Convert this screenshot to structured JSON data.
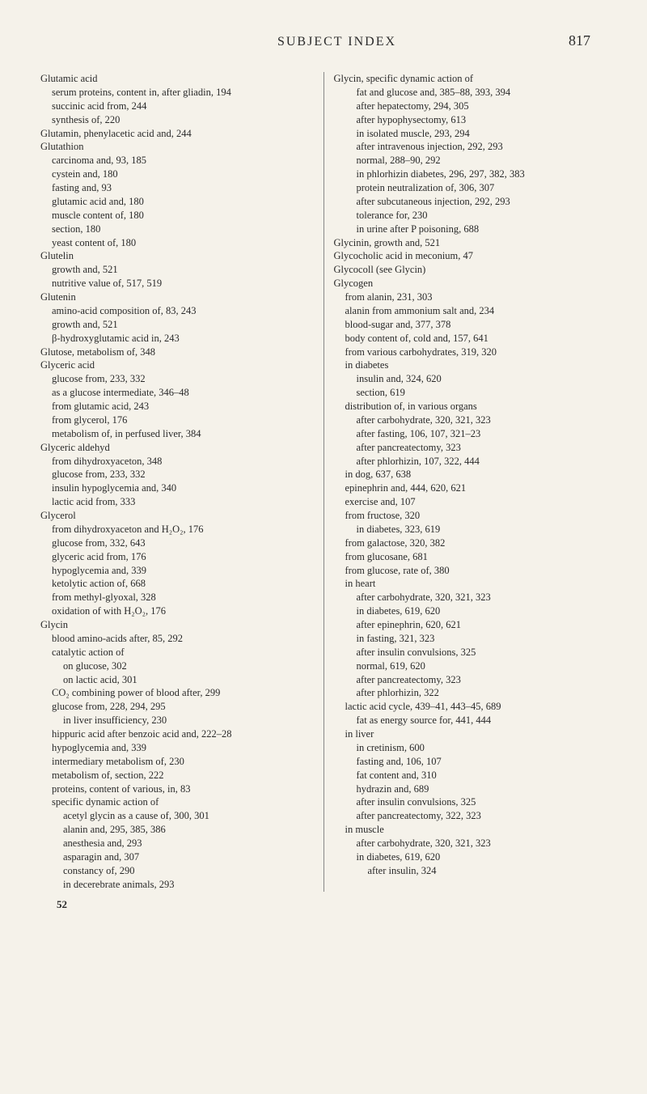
{
  "header": {
    "title": "SUBJECT INDEX",
    "pageNumber": "817"
  },
  "footer": "52",
  "leftColumn": [
    {
      "t": "Glutamic acid",
      "c": "l0"
    },
    {
      "t": "serum proteins, content in, after gliadin, 194",
      "c": "hang1"
    },
    {
      "t": "succinic acid from, 244",
      "c": "l1"
    },
    {
      "t": "synthesis of, 220",
      "c": "l1"
    },
    {
      "t": "Glutamin, phenylacetic acid and, 244",
      "c": "l0"
    },
    {
      "t": "Glutathion",
      "c": "l0"
    },
    {
      "t": "carcinoma and, 93, 185",
      "c": "l1"
    },
    {
      "t": "cystein and, 180",
      "c": "l1"
    },
    {
      "t": "fasting and, 93",
      "c": "l1"
    },
    {
      "t": "glutamic acid and, 180",
      "c": "l1"
    },
    {
      "t": "muscle content of, 180",
      "c": "l1"
    },
    {
      "t": "section, 180",
      "c": "l1"
    },
    {
      "t": "yeast content of, 180",
      "c": "l1"
    },
    {
      "t": "Glutelin",
      "c": "l0"
    },
    {
      "t": "growth and, 521",
      "c": "l1"
    },
    {
      "t": "nutritive value of, 517, 519",
      "c": "l1"
    },
    {
      "t": "Glutenin",
      "c": "l0"
    },
    {
      "t": "amino-acid composition of, 83, 243",
      "c": "l1"
    },
    {
      "t": "growth and, 521",
      "c": "l1"
    },
    {
      "t": "β-hydroxyglutamic acid in, 243",
      "c": "l1"
    },
    {
      "t": "Glutose, metabolism of, 348",
      "c": "l0"
    },
    {
      "t": "Glyceric acid",
      "c": "l0"
    },
    {
      "t": "glucose from, 233, 332",
      "c": "l1"
    },
    {
      "t": "as a glucose intermediate, 346–48",
      "c": "l1"
    },
    {
      "t": "from glutamic acid, 243",
      "c": "l1"
    },
    {
      "t": "from glycerol, 176",
      "c": "l1"
    },
    {
      "t": "metabolism of, in perfused liver, 384",
      "c": "l1"
    },
    {
      "t": "Glyceric aldehyd",
      "c": "l0"
    },
    {
      "t": "from dihydroxyaceton, 348",
      "c": "l1"
    },
    {
      "t": "glucose from, 233, 332",
      "c": "l1"
    },
    {
      "t": "insulin hypoglycemia and, 340",
      "c": "l1"
    },
    {
      "t": "lactic acid from, 333",
      "c": "l1"
    },
    {
      "t": "Glycerol",
      "c": "l0"
    },
    {
      "t": "from dihydroxyaceton and H₂O₂, 176",
      "c": "l1"
    },
    {
      "t": "glucose from, 332, 643",
      "c": "l1"
    },
    {
      "t": "glyceric acid from, 176",
      "c": "l1"
    },
    {
      "t": "hypoglycemia and, 339",
      "c": "l1"
    },
    {
      "t": "ketolytic action of, 668",
      "c": "l1"
    },
    {
      "t": "from methyl-glyoxal, 328",
      "c": "l1"
    },
    {
      "t": "oxidation of with H₂O₂, 176",
      "c": "l1"
    },
    {
      "t": "Glycin",
      "c": "l0"
    },
    {
      "t": "blood amino-acids after, 85, 292",
      "c": "l1"
    },
    {
      "t": "catalytic action of",
      "c": "l1"
    },
    {
      "t": "on glucose, 302",
      "c": "l2"
    },
    {
      "t": "on lactic acid, 301",
      "c": "l2"
    },
    {
      "t": "CO₂ combining power of blood after, 299",
      "c": "l1"
    },
    {
      "t": "glucose from, 228, 294, 295",
      "c": "l1"
    },
    {
      "t": "in liver insufficiency, 230",
      "c": "l2"
    },
    {
      "t": "hippuric acid after benzoic acid and, 222–28",
      "c": "hang1"
    },
    {
      "t": "hypoglycemia and, 339",
      "c": "l1"
    },
    {
      "t": "intermediary metabolism of, 230",
      "c": "l1"
    },
    {
      "t": "metabolism of, section, 222",
      "c": "l1"
    },
    {
      "t": "proteins, content of various, in, 83",
      "c": "l1"
    },
    {
      "t": "specific dynamic action of",
      "c": "l1"
    },
    {
      "t": "acetyl glycin as a cause of, 300, 301",
      "c": "hang2"
    },
    {
      "t": "alanin and, 295, 385, 386",
      "c": "l2"
    },
    {
      "t": "anesthesia and, 293",
      "c": "l2"
    },
    {
      "t": "asparagin and, 307",
      "c": "l2"
    },
    {
      "t": "constancy of, 290",
      "c": "l2"
    },
    {
      "t": "in decerebrate animals, 293",
      "c": "l2"
    }
  ],
  "rightColumn": [
    {
      "t": "Glycin, specific dynamic action of",
      "c": "l0"
    },
    {
      "t": "fat and glucose and, 385–88, 393, 394",
      "c": "hang2"
    },
    {
      "t": "after hepatectomy, 294, 305",
      "c": "l2"
    },
    {
      "t": "after hypophysectomy, 613",
      "c": "l2"
    },
    {
      "t": "in isolated muscle, 293, 294",
      "c": "l2"
    },
    {
      "t": "after intravenous injection, 292, 293",
      "c": "hang2"
    },
    {
      "t": "normal, 288–90, 292",
      "c": "l2"
    },
    {
      "t": "in phlorhizin diabetes, 296, 297, 382, 383",
      "c": "hang2"
    },
    {
      "t": "protein neutralization of, 306, 307",
      "c": "l2"
    },
    {
      "t": "after subcutaneous injection, 292, 293",
      "c": "hang2"
    },
    {
      "t": "tolerance for, 230",
      "c": "l2"
    },
    {
      "t": "in urine after P poisoning, 688",
      "c": "l2"
    },
    {
      "t": "Glycinin, growth and, 521",
      "c": "l0"
    },
    {
      "t": "Glycocholic acid in meconium, 47",
      "c": "l0"
    },
    {
      "t": "Glycocoll (see Glycin)",
      "c": "l0"
    },
    {
      "t": "Glycogen",
      "c": "l0"
    },
    {
      "t": "from alanin, 231, 303",
      "c": "l1"
    },
    {
      "t": "alanin from ammonium salt and, 234",
      "c": "l1"
    },
    {
      "t": "blood-sugar and, 377, 378",
      "c": "l1"
    },
    {
      "t": "body content of, cold and, 157, 641",
      "c": "l1"
    },
    {
      "t": "from various carbohydrates, 319, 320",
      "c": "l1"
    },
    {
      "t": "in diabetes",
      "c": "l1"
    },
    {
      "t": "insulin and, 324, 620",
      "c": "l2"
    },
    {
      "t": "section, 619",
      "c": "l2"
    },
    {
      "t": "distribution of, in various organs",
      "c": "l1"
    },
    {
      "t": "after carbohydrate, 320, 321, 323",
      "c": "l2"
    },
    {
      "t": "after fasting, 106, 107, 321–23",
      "c": "l2"
    },
    {
      "t": "after pancreatectomy, 323",
      "c": "l2"
    },
    {
      "t": "after phlorhizin, 107, 322, 444",
      "c": "l2"
    },
    {
      "t": "in dog, 637, 638",
      "c": "l1"
    },
    {
      "t": "epinephrin and, 444, 620, 621",
      "c": "l1"
    },
    {
      "t": "exercise and, 107",
      "c": "l1"
    },
    {
      "t": "from fructose, 320",
      "c": "l1"
    },
    {
      "t": "in diabetes, 323, 619",
      "c": "l2"
    },
    {
      "t": "from galactose, 320, 382",
      "c": "l1"
    },
    {
      "t": "from glucosane, 681",
      "c": "l1"
    },
    {
      "t": "from glucose, rate of, 380",
      "c": "l1"
    },
    {
      "t": "in heart",
      "c": "l1"
    },
    {
      "t": "after carbohydrate, 320, 321, 323",
      "c": "l2"
    },
    {
      "t": "in diabetes, 619, 620",
      "c": "l2"
    },
    {
      "t": "after epinephrin, 620, 621",
      "c": "l2"
    },
    {
      "t": "in fasting, 321, 323",
      "c": "l2"
    },
    {
      "t": "after insulin convulsions, 325",
      "c": "l2"
    },
    {
      "t": "normal, 619, 620",
      "c": "l2"
    },
    {
      "t": "after pancreatectomy, 323",
      "c": "l2"
    },
    {
      "t": "after phlorhizin, 322",
      "c": "l2"
    },
    {
      "t": "lactic acid cycle, 439–41, 443–45, 689",
      "c": "l1"
    },
    {
      "t": "fat as energy source for, 441, 444",
      "c": "l2"
    },
    {
      "t": "in liver",
      "c": "l1"
    },
    {
      "t": "in cretinism, 600",
      "c": "l2"
    },
    {
      "t": "fasting and, 106, 107",
      "c": "l2"
    },
    {
      "t": "fat content and, 310",
      "c": "l2"
    },
    {
      "t": "hydrazin and, 689",
      "c": "l2"
    },
    {
      "t": "after insulin convulsions, 325",
      "c": "l2"
    },
    {
      "t": "after pancreatectomy, 322, 323",
      "c": "l2"
    },
    {
      "t": "in muscle",
      "c": "l1"
    },
    {
      "t": "after carbohydrate, 320, 321, 323",
      "c": "l2"
    },
    {
      "t": "in diabetes, 619, 620",
      "c": "l2"
    },
    {
      "t": "after insulin, 324",
      "c": "l3"
    }
  ]
}
